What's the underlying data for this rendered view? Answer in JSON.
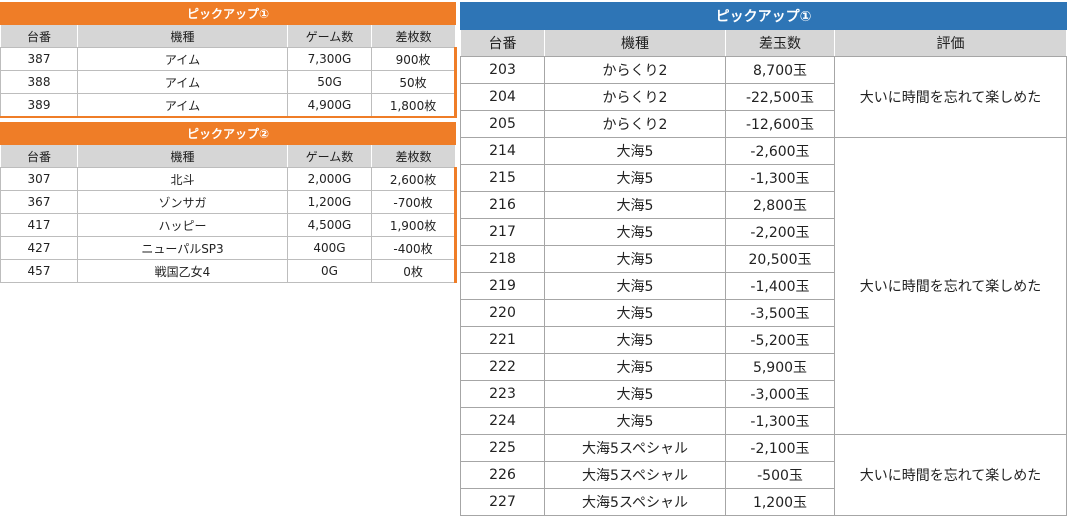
{
  "pickup1_small": {
    "title": "ピックアップ①",
    "headers": [
      "台番",
      "機種",
      "ゲーム数",
      "差枚数"
    ],
    "rows": [
      {
        "no": "387",
        "model": "アイム",
        "games": "7,300G",
        "diff": "900枚"
      },
      {
        "no": "388",
        "model": "アイム",
        "games": "50G",
        "diff": "50枚"
      },
      {
        "no": "389",
        "model": "アイム",
        "games": "4,900G",
        "diff": "1,800枚"
      }
    ]
  },
  "pickup2_small": {
    "title": "ピックアップ②",
    "headers": [
      "台番",
      "機種",
      "ゲーム数",
      "差枚数"
    ],
    "rows": [
      {
        "no": "307",
        "model": "北斗",
        "games": "2,000G",
        "diff": "2,600枚"
      },
      {
        "no": "367",
        "model": "ゾンサガ",
        "games": "1,200G",
        "diff": "-700枚"
      },
      {
        "no": "417",
        "model": "ハッピー",
        "games": "4,500G",
        "diff": "1,900枚"
      },
      {
        "no": "427",
        "model": "ニューパルSP3",
        "games": "400G",
        "diff": "-400枚"
      },
      {
        "no": "457",
        "model": "戦国乙女4",
        "games": "0G",
        "diff": "0枚"
      }
    ]
  },
  "pickup1_big": {
    "title": "ピックアップ①",
    "headers": [
      "台番",
      "機種",
      "差玉数",
      "評価"
    ],
    "groups": [
      {
        "evaluation": "大いに時間を忘れて楽しめた",
        "rows": [
          {
            "no": "203",
            "model": "からくり2",
            "diff": "8,700玉"
          },
          {
            "no": "204",
            "model": "からくり2",
            "diff": "-22,500玉"
          },
          {
            "no": "205",
            "model": "からくり2",
            "diff": "-12,600玉"
          }
        ]
      },
      {
        "evaluation": "大いに時間を忘れて楽しめた",
        "rows": [
          {
            "no": "214",
            "model": "大海5",
            "diff": "-2,600玉"
          },
          {
            "no": "215",
            "model": "大海5",
            "diff": "-1,300玉"
          },
          {
            "no": "216",
            "model": "大海5",
            "diff": "2,800玉"
          },
          {
            "no": "217",
            "model": "大海5",
            "diff": "-2,200玉"
          },
          {
            "no": "218",
            "model": "大海5",
            "diff": "20,500玉"
          },
          {
            "no": "219",
            "model": "大海5",
            "diff": "-1,400玉"
          },
          {
            "no": "220",
            "model": "大海5",
            "diff": "-3,500玉"
          },
          {
            "no": "221",
            "model": "大海5",
            "diff": "-5,200玉"
          },
          {
            "no": "222",
            "model": "大海5",
            "diff": "5,900玉"
          },
          {
            "no": "223",
            "model": "大海5",
            "diff": "-3,000玉"
          },
          {
            "no": "224",
            "model": "大海5",
            "diff": "-1,300玉"
          }
        ]
      },
      {
        "evaluation": "大いに時間を忘れて楽しめた",
        "rows": [
          {
            "no": "225",
            "model": "大海5スペシャル",
            "diff": "-2,100玉"
          },
          {
            "no": "226",
            "model": "大海5スペシャル",
            "diff": "-500玉"
          },
          {
            "no": "227",
            "model": "大海5スペシャル",
            "diff": "1,200玉"
          }
        ]
      }
    ]
  },
  "colors": {
    "orange_header": "#ef7d27",
    "blue_header": "#2e75b6",
    "column_header_gray": "#d6d6d6"
  }
}
